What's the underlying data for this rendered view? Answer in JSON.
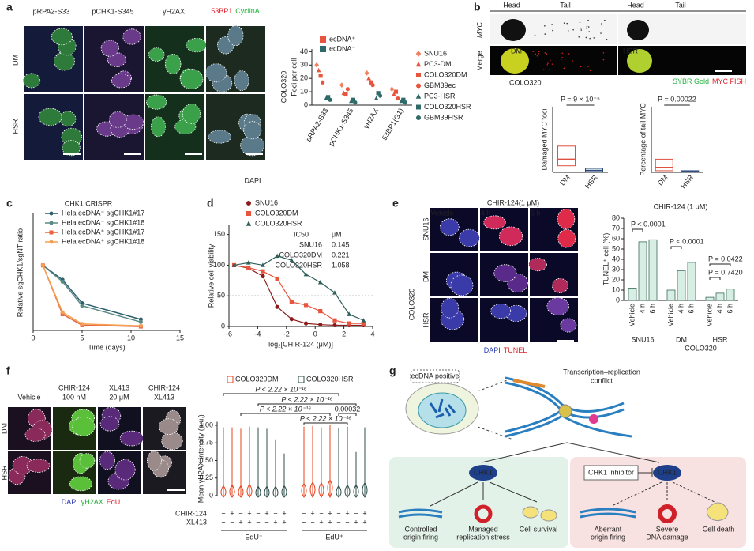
{
  "panel_labels": [
    "a",
    "b",
    "c",
    "d",
    "e",
    "f",
    "g"
  ],
  "images_a": {
    "stains": [
      {
        "text": "pRPA2-S33",
        "color": "#22b03a"
      },
      {
        "text": "pCHK1-S345",
        "color": "#e0202a"
      },
      {
        "text": "γH2AX",
        "color": "#22b03a"
      },
      {
        "text": "53BP1",
        "color": "#e0202a"
      },
      {
        "text": "CyclinA",
        "color": "#22b03a"
      }
    ],
    "rows": [
      "DM",
      "HSR"
    ],
    "cell_line": "COLO320",
    "stain_legend": "DAPI"
  },
  "images_b": {
    "columns": [
      "Head",
      "Tail",
      "Head",
      "Tail"
    ],
    "rows": [
      "MYC",
      "Merge"
    ],
    "insets": [
      "DM",
      "HSR"
    ],
    "cell_line": "COLO320",
    "legend": [
      {
        "text": "SYBR Gold",
        "color": "#22b03a"
      },
      {
        "text": "MYC FISH",
        "color": "#e0202a"
      }
    ]
  },
  "images_e": {
    "title": "CHIR-124(1 μM)",
    "columns": [
      "Vehicle",
      "4 h",
      "6 h"
    ],
    "rows": [
      "SNU16",
      "DM",
      "HSR"
    ],
    "group": "COLO320",
    "legend": [
      {
        "text": "DAPI",
        "color": "#2a3ab0"
      },
      {
        "text": "TUNEL",
        "color": "#e0202a"
      }
    ]
  },
  "images_f": {
    "columns": [
      [
        "Vehicle"
      ],
      [
        "CHIR-124",
        "100 nM"
      ],
      [
        "XL413",
        "20 μM"
      ],
      [
        "CHIR-124",
        "XL413"
      ]
    ],
    "rows": [
      "DM",
      "HSR"
    ],
    "legend": [
      {
        "text": "DAPI",
        "color": "#2a3ab0"
      },
      {
        "text": "γH2AX",
        "color": "#22b03a"
      },
      {
        "text": "EdU",
        "color": "#e0202a"
      }
    ]
  },
  "diagram_g": {
    "cell_label": "ecDNA positive",
    "conflict": [
      "Transcription–replication",
      "conflict"
    ],
    "kinase": "CHK1",
    "inhibitor": "CHK1 inhibitor",
    "kinase_inhibited": "CHK1",
    "outcomes_active": [
      [
        "Controlled",
        "origin firing"
      ],
      [
        "Managed",
        "replication stress"
      ],
      [
        "Cell survival"
      ]
    ],
    "outcomes_inhibited": [
      [
        "Aberrant",
        "origin firing"
      ],
      [
        "Severe",
        "DNA damage"
      ],
      [
        "Cell death"
      ]
    ]
  },
  "chart_data": [
    {
      "type": "strip",
      "ylabel": "Foci per cell",
      "categories": [
        "pRPA2-S33",
        "pCHK1-S345",
        "γH2AX",
        "53BP1(G1)"
      ],
      "ylim": [
        0,
        42
      ],
      "yticks": [
        0,
        10,
        20,
        30,
        40
      ],
      "groups": [
        {
          "name": "ecDNA⁺",
          "color": "#e8543c",
          "series": [
            {
              "name": "SNU16",
              "color": "#f08060",
              "marker": "diamond",
              "values": [
                30,
                15,
                24,
                12
              ]
            },
            {
              "name": "PC3-DM",
              "color": "#e8543c",
              "marker": "triangle",
              "values": [
                26,
                9,
                20,
                8
              ]
            },
            {
              "name": "COLO320DM",
              "color": "#e8543c",
              "marker": "square",
              "values": [
                22,
                8,
                17,
                10
              ]
            },
            {
              "name": "GBM39ec",
              "color": "#e8543c",
              "marker": "circle",
              "values": [
                17,
                12,
                15,
                5
              ]
            }
          ]
        },
        {
          "name": "ecDNA⁻",
          "color": "#2e6b68",
          "series": [
            {
              "name": "PC3-HSR",
              "color": "#2e6b68",
              "marker": "triangle",
              "values": [
                5,
                3,
                5,
                3
              ]
            },
            {
              "name": "COLO320HSR",
              "color": "#2e6b68",
              "marker": "square",
              "values": [
                6,
                4,
                9,
                4
              ]
            },
            {
              "name": "GBM39HSR",
              "color": "#2e6b68",
              "marker": "circle",
              "values": [
                4,
                2,
                7,
                2
              ]
            }
          ]
        }
      ]
    },
    {
      "type": "box",
      "ylabel": "Damaged MYC foci",
      "categories": [
        "DM",
        "HSR"
      ],
      "colors": [
        "#e05040",
        "#2a4a7a"
      ],
      "ylim": [
        0,
        100
      ],
      "q1": [
        10,
        1
      ],
      "median": [
        20,
        3
      ],
      "q3": [
        40,
        6
      ],
      "annotation": "P = 9 × 10⁻⁵"
    },
    {
      "type": "box",
      "ylabel": "Percentage of tail MYC",
      "categories": [
        "DM",
        "HSR"
      ],
      "colors": [
        "#e05040",
        "#2a4a7a"
      ],
      "ylim": [
        0,
        40
      ],
      "q1": [
        1,
        0.2
      ],
      "median": [
        3,
        0.5
      ],
      "q3": [
        8,
        1
      ],
      "annotation": "P = 0.00022"
    },
    {
      "type": "line",
      "title": "CHK1 CRISPR",
      "xlabel": "Time (days)",
      "ylabel": "Relative sgCHK1/sgNT ratio",
      "x": [
        1,
        3,
        5,
        11
      ],
      "xlim": [
        0,
        15
      ],
      "xticks": [
        0,
        5,
        10,
        15
      ],
      "ylim": [
        0,
        1.8
      ],
      "series": [
        {
          "name": "Hela ecDNA⁻ sgCHK1#17",
          "color": "#2e5f6e",
          "marker": "circle",
          "values": [
            1,
            0.78,
            0.42,
            0.17
          ]
        },
        {
          "name": "Hela ecDNA⁻ sgCHK1#18",
          "color": "#5a8a84",
          "marker": "circle",
          "values": [
            1,
            0.75,
            0.38,
            0.13
          ]
        },
        {
          "name": "Hela ecDNA⁺ sgCHK1#17",
          "color": "#e8643c",
          "marker": "square",
          "values": [
            1,
            0.25,
            0.08,
            0.06
          ]
        },
        {
          "name": "Hela ecDNA⁺ sgCHK1#18",
          "color": "#f5a050",
          "marker": "circle",
          "values": [
            1,
            0.28,
            0.1,
            0.07
          ]
        }
      ]
    },
    {
      "type": "dose",
      "xlabel": "log₂[CHIR-124 (μM)]",
      "ylabel": "Relative cell viability",
      "x": [
        -5.64,
        -4.64,
        -3.64,
        -2.64,
        -1.64,
        -0.64,
        0.36,
        1.36,
        2.36,
        3.36
      ],
      "xlim": [
        -6,
        4
      ],
      "xticks": [
        -6,
        -4,
        -2,
        0,
        2,
        4
      ],
      "ylim": [
        0,
        165
      ],
      "yticks": [
        0,
        50,
        100,
        150
      ],
      "refline": 50,
      "series": [
        {
          "name": "SNU16",
          "color": "#8b1a1a",
          "marker": "circle",
          "values": [
            100,
            95,
            82,
            32,
            12,
            5,
            3,
            2,
            2,
            2
          ]
        },
        {
          "name": "COLO320DM",
          "color": "#e8543c",
          "marker": "square",
          "values": [
            100,
            96,
            90,
            78,
            40,
            35,
            25,
            10,
            5,
            5
          ]
        },
        {
          "name": "COLO320HSR",
          "color": "#2e5f5a",
          "marker": "triangle",
          "values": [
            100,
            104,
            100,
            115,
            108,
            85,
            72,
            55,
            20,
            10
          ]
        }
      ],
      "ic50_header": [
        "IC50",
        "μM"
      ],
      "ic50": [
        0.145,
        0.221,
        1.058
      ]
    },
    {
      "type": "bar",
      "title": "CHIR-124 (1 μM)",
      "ylabel": "TUNEL⁺ cell (%)",
      "categories": [
        "Vehicle",
        "4 h",
        "6 h",
        "Vehicle",
        "4 h",
        "6 h",
        "Vehicle",
        "4 h",
        "6 h"
      ],
      "values": [
        12,
        57,
        59,
        10,
        29,
        37,
        3,
        7,
        11
      ],
      "color": "#d6eee3",
      "ylim": [
        0,
        80
      ],
      "yticks": [
        0,
        10,
        20,
        30,
        40,
        50,
        60,
        70,
        80
      ],
      "groups": [
        "SNU16",
        "DM",
        "HSR"
      ],
      "group_label": "COLO320",
      "annotations": [
        "P < 0.0001",
        "P < 0.0001",
        "P = 0.0422",
        "P = 0.7420"
      ]
    },
    {
      "type": "violin",
      "ylabel": "Mean γH2AX intensity (a.u.)",
      "ylim": [
        0,
        1.05
      ],
      "yticks": [
        0,
        0.25,
        {
          "value": 0.5,
          "label": "0.50"
        },
        0.75,
        {
          "value": 1,
          "label": "1.00"
        }
      ],
      "series": [
        {
          "name": "COLO320DM",
          "color": "#e8431c",
          "values": [
            0.04,
            0.05,
            0.04,
            0.06,
            null,
            null,
            null,
            null,
            0.07,
            0.09,
            0.08,
            0.12,
            null,
            null,
            null,
            null
          ],
          "max": [
            0.97,
            0.97,
            0.95,
            0.98,
            null,
            null,
            null,
            null,
            0.98,
            0.99,
            0.97,
            1,
            null,
            null,
            null,
            null
          ]
        },
        {
          "name": "COLO320HSR",
          "color": "#2e4f4a",
          "values": [
            null,
            null,
            null,
            null,
            0.03,
            0.03,
            0.03,
            0.04,
            null,
            null,
            null,
            null,
            0.04,
            0.05,
            0.05,
            0.08
          ],
          "max": [
            null,
            null,
            null,
            null,
            0.97,
            0.95,
            0.8,
            0.6,
            null,
            null,
            null,
            null,
            0.96,
            0.98,
            0.62,
            0.97
          ]
        }
      ],
      "rows": [
        {
          "name": "CHIR-124",
          "signs": [
            "−",
            "+",
            "−",
            "+",
            "−",
            "+",
            "−",
            "+",
            "−",
            "+",
            "−",
            "+",
            "−",
            "+",
            "−",
            "+"
          ]
        },
        {
          "name": "XL413",
          "signs": [
            "−",
            "−",
            "+",
            "+",
            "−",
            "−",
            "+",
            "+",
            "−",
            "−",
            "+",
            "+",
            "−",
            "−",
            "+",
            "+"
          ]
        }
      ],
      "groups": [
        "EdU⁻",
        "EdU⁺"
      ],
      "annotations": [
        "P < 2.22 × 10⁻¹⁶",
        "P < 2.22 × 10⁻¹⁶",
        "P < 2.22 × 10⁻¹⁶",
        "0.00032",
        "P < 2.22 × 10⁻¹⁶"
      ]
    }
  ]
}
